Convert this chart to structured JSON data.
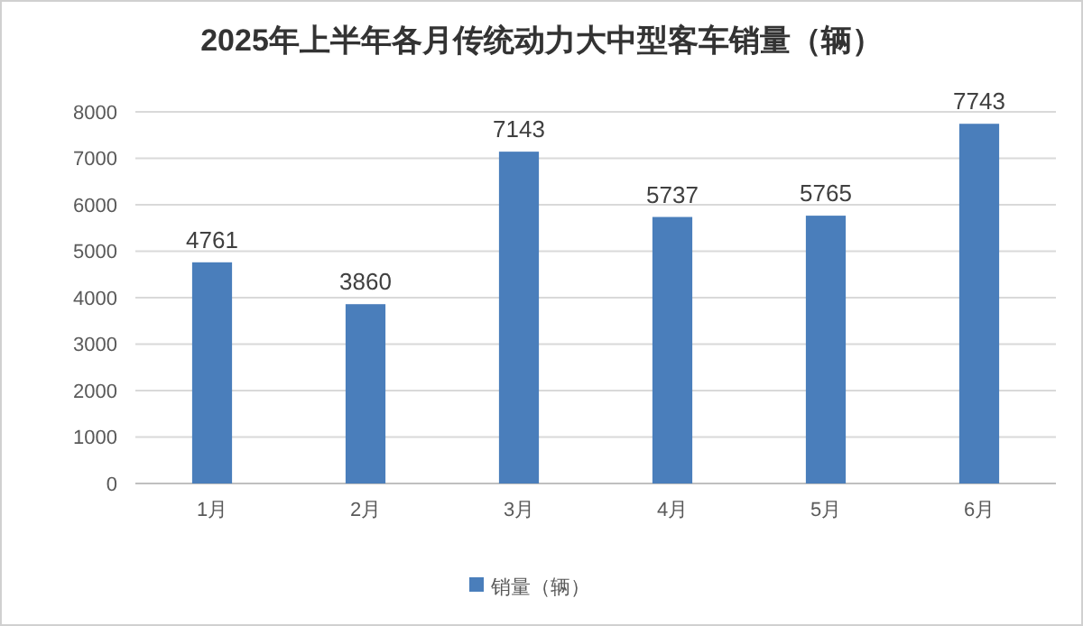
{
  "chart_data": {
    "type": "bar",
    "title": "2025年上半年各月传统动力大中型客车销量（辆）",
    "categories": [
      "1月",
      "2月",
      "3月",
      "4月",
      "5月",
      "6月"
    ],
    "series": [
      {
        "name": "销量（辆）",
        "color": "#4a7ebb",
        "values": [
          4761,
          3860,
          7143,
          5737,
          5765,
          7743
        ]
      }
    ],
    "ylim": [
      0,
      8000
    ],
    "yticks": [
      0,
      1000,
      2000,
      3000,
      4000,
      5000,
      6000,
      7000,
      8000
    ],
    "grid": "y",
    "legend": "bottom",
    "data_labels": true
  }
}
